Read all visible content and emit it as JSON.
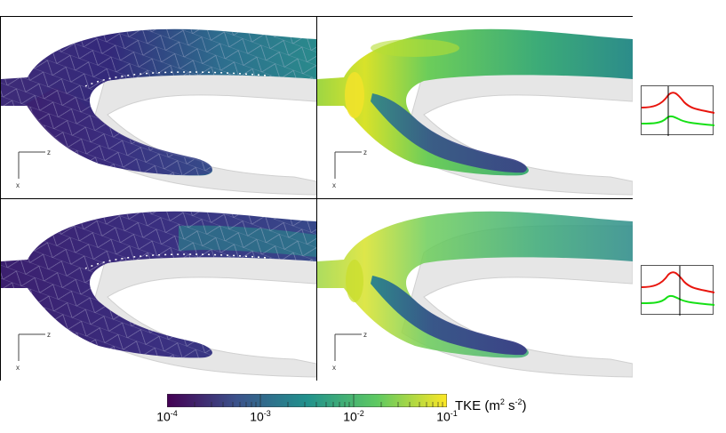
{
  "colorbar": {
    "title_main": "TKE (m",
    "title_exp1": "2",
    "title_mid": " s",
    "title_exp2": "-2",
    "title_end": ")",
    "ticks": [
      {
        "base": "10",
        "exp": "-4"
      },
      {
        "base": "10",
        "exp": "-3"
      },
      {
        "base": "10",
        "exp": "-2"
      },
      {
        "base": "10",
        "exp": "-1"
      }
    ],
    "colors": [
      "#440154",
      "#3b528b",
      "#21918c",
      "#5ec962",
      "#fde725"
    ]
  },
  "axes": {
    "vertical": "x",
    "horizontal": "z"
  },
  "panels": [
    {
      "id": "top-left",
      "level": "low",
      "mesh": true
    },
    {
      "id": "top-right",
      "level": "high",
      "mesh": false
    },
    {
      "id": "bottom-left",
      "level": "low",
      "mesh": true
    },
    {
      "id": "bottom-right",
      "level": "high",
      "mesh": false
    }
  ],
  "insets": [
    {
      "id": "inset-top",
      "cursor_fraction": 0.37
    },
    {
      "id": "inset-bottom",
      "cursor_fraction": 0.53
    }
  ],
  "colors": {
    "red_curve": "#e8150d",
    "green_curve": "#16e016"
  }
}
